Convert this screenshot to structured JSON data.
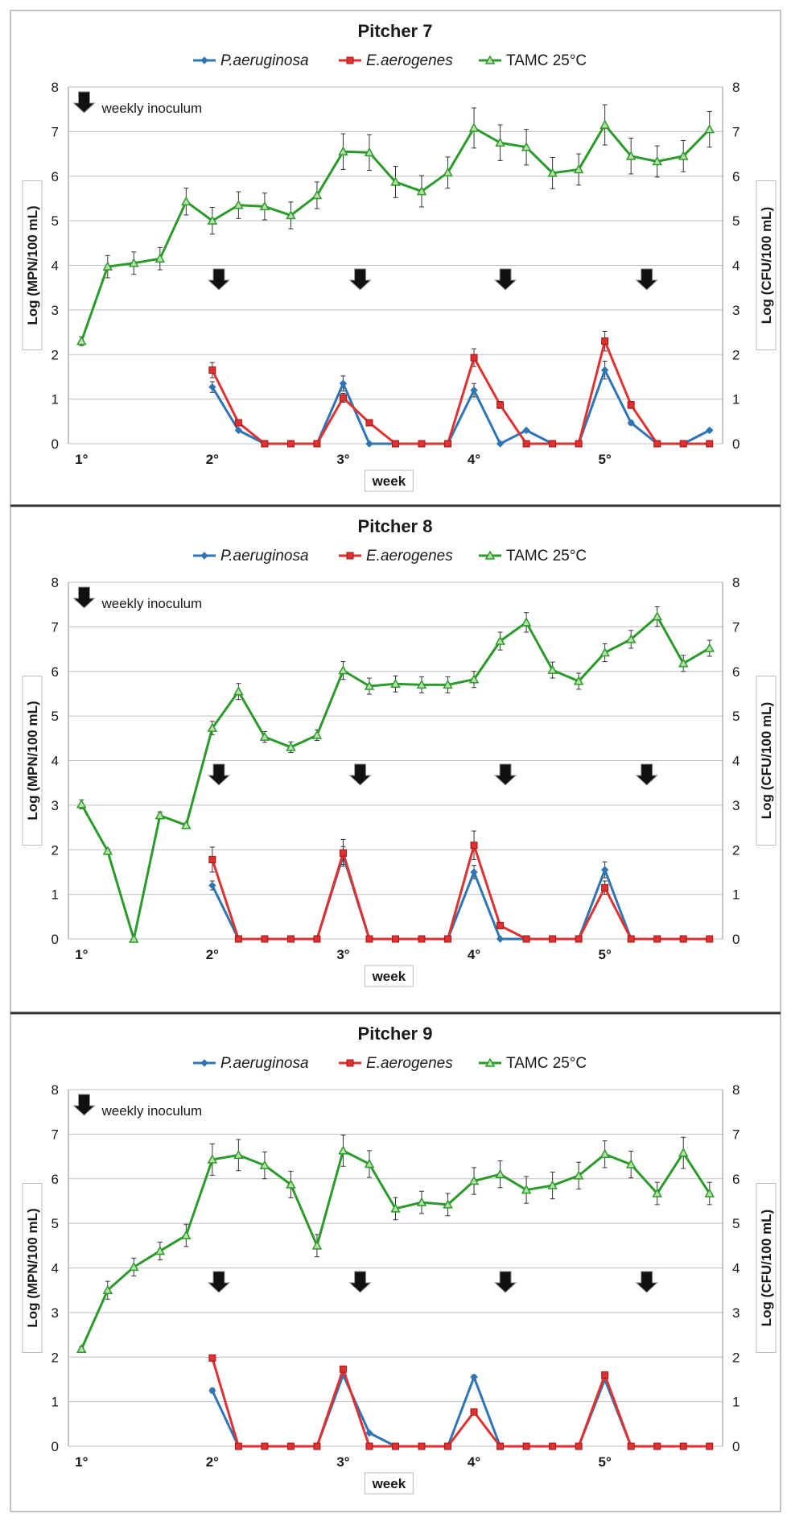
{
  "colors": {
    "pa": "#2e75b6",
    "ea": "#e03030",
    "tamc": "#2b9a2b",
    "grid": "#bfbfbf",
    "divider": "#333333",
    "arrow": "#111111"
  },
  "legend": {
    "pa": "P.aeruginosa",
    "ea": "E.aerogenes",
    "tamc": "TAMC 25°C"
  },
  "annotation": "weekly inoculum",
  "chart_data": [
    {
      "type": "line",
      "title": "Pitcher 7",
      "xlabel": "week",
      "ylabel_left": "Log (MPN/100 mL)",
      "ylabel_right": "Log (CFU/100 mL)",
      "ylim": [
        0,
        8
      ],
      "yticks": [
        "0",
        "1",
        "2",
        "3",
        "4",
        "5",
        "6",
        "7",
        "8"
      ],
      "xticks": [
        "1°",
        "2°",
        "3°",
        "4°",
        "5°"
      ],
      "x_tick_values": [
        1,
        2,
        3,
        4,
        5
      ],
      "inoculum_weeks": [
        2.05,
        3.13,
        4.24,
        5.32
      ],
      "series": [
        {
          "name": "TAMC 25°C",
          "key": "tamc",
          "x": [
            1,
            1.2,
            1.4,
            1.6,
            1.8,
            2,
            2.2,
            2.4,
            2.6,
            2.8,
            3,
            3.2,
            3.4,
            3.6,
            3.8,
            4,
            4.2,
            4.4,
            4.6,
            4.8,
            5,
            5.2,
            5.4,
            5.6,
            5.8
          ],
          "values": [
            2.3,
            3.97,
            4.05,
            4.15,
            5.43,
            5.0,
            5.35,
            5.32,
            5.12,
            5.57,
            6.55,
            6.53,
            5.87,
            5.66,
            6.08,
            7.08,
            6.75,
            6.65,
            6.07,
            6.15,
            7.15,
            6.45,
            6.33,
            6.45,
            7.05
          ],
          "errors": [
            0.1,
            0.25,
            0.25,
            0.25,
            0.3,
            0.3,
            0.3,
            0.3,
            0.3,
            0.3,
            0.4,
            0.4,
            0.35,
            0.35,
            0.35,
            0.45,
            0.4,
            0.4,
            0.35,
            0.35,
            0.45,
            0.4,
            0.35,
            0.35,
            0.4
          ]
        },
        {
          "name": "P.aeruginosa",
          "key": "pa",
          "x": [
            2,
            2.2,
            2.4,
            2.6,
            2.8,
            3,
            3.2,
            3.4,
            3.6,
            3.8,
            4,
            4.2,
            4.4,
            4.6,
            4.8,
            5,
            5.2,
            5.4,
            5.6,
            5.8
          ],
          "values": [
            1.27,
            0.3,
            0,
            0,
            0,
            1.35,
            0,
            0,
            0,
            0,
            1.2,
            0,
            0.3,
            0,
            0,
            1.65,
            0.47,
            0,
            0,
            0.3
          ],
          "errors": [
            0.12,
            0.03,
            0,
            0,
            0,
            0.17,
            0,
            0,
            0,
            0,
            0.15,
            0,
            0.03,
            0,
            0,
            0.2,
            0.05,
            0,
            0,
            0.03
          ]
        },
        {
          "name": "E.aerogenes",
          "key": "ea",
          "x": [
            2,
            2.2,
            2.4,
            2.6,
            2.8,
            3,
            3.2,
            3.4,
            3.6,
            3.8,
            4,
            4.2,
            4.4,
            4.6,
            4.8,
            5,
            5.2,
            5.4,
            5.6,
            5.8
          ],
          "values": [
            1.65,
            0.47,
            0,
            0,
            0,
            1.03,
            0.47,
            0,
            0,
            0,
            1.93,
            0.87,
            0,
            0,
            0,
            2.3,
            0.87,
            0,
            0,
            0
          ],
          "errors": [
            0.17,
            0.05,
            0,
            0,
            0,
            0.1,
            0.05,
            0,
            0,
            0,
            0.2,
            0.08,
            0,
            0,
            0,
            0.22,
            0.08,
            0,
            0,
            0
          ]
        }
      ]
    },
    {
      "type": "line",
      "title": "Pitcher 8",
      "xlabel": "week",
      "ylabel_left": "Log (MPN/100 mL)",
      "ylabel_right": "Log (CFU/100 mL)",
      "ylim": [
        0,
        8
      ],
      "yticks": [
        "0",
        "1",
        "2",
        "3",
        "4",
        "5",
        "6",
        "7",
        "8"
      ],
      "xticks": [
        "1°",
        "2°",
        "3°",
        "4°",
        "5°"
      ],
      "x_tick_values": [
        1,
        2,
        3,
        4,
        5
      ],
      "inoculum_weeks": [
        2.05,
        3.13,
        4.24,
        5.32
      ],
      "series": [
        {
          "name": "TAMC 25°C",
          "key": "tamc",
          "x": [
            1,
            1.2,
            1.4,
            1.6,
            1.8,
            2,
            2.2,
            2.4,
            2.6,
            2.8,
            3,
            3.2,
            3.4,
            3.6,
            3.8,
            4,
            4.2,
            4.4,
            4.6,
            4.8,
            5,
            5.2,
            5.4,
            5.6,
            5.8
          ],
          "values": [
            3.02,
            1.97,
            0,
            2.77,
            2.55,
            4.73,
            5.55,
            4.53,
            4.3,
            4.57,
            6.02,
            5.67,
            5.72,
            5.7,
            5.7,
            5.82,
            6.68,
            7.1,
            6.03,
            5.78,
            6.42,
            6.72,
            7.23,
            6.18,
            6.52
          ],
          "errors": [
            0.1,
            0.05,
            0,
            0.08,
            0.05,
            0.15,
            0.18,
            0.12,
            0.12,
            0.12,
            0.2,
            0.18,
            0.18,
            0.18,
            0.18,
            0.18,
            0.2,
            0.22,
            0.18,
            0.18,
            0.2,
            0.2,
            0.22,
            0.18,
            0.18
          ]
        },
        {
          "name": "P.aeruginosa",
          "key": "pa",
          "x": [
            2,
            2.2,
            2.4,
            2.6,
            2.8,
            3,
            3.2,
            3.4,
            3.6,
            3.8,
            4,
            4.2,
            4.4,
            4.6,
            4.8,
            5,
            5.2,
            5.4,
            5.6,
            5.8
          ],
          "values": [
            1.2,
            0,
            0,
            0,
            0,
            1.87,
            0,
            0,
            0,
            0,
            1.5,
            0,
            0,
            0,
            0,
            1.55,
            0,
            0,
            0,
            0
          ],
          "errors": [
            0.1,
            0,
            0,
            0,
            0,
            0.2,
            0,
            0,
            0,
            0,
            0.15,
            0,
            0,
            0,
            0,
            0.18,
            0,
            0,
            0,
            0
          ]
        },
        {
          "name": "E.aerogenes",
          "key": "ea",
          "x": [
            2,
            2.2,
            2.4,
            2.6,
            2.8,
            3,
            3.2,
            3.4,
            3.6,
            3.8,
            4,
            4.2,
            4.4,
            4.6,
            4.8,
            5,
            5.2,
            5.4,
            5.6,
            5.8
          ],
          "values": [
            1.78,
            0,
            0,
            0,
            0,
            1.93,
            0,
            0,
            0,
            0,
            2.1,
            0.3,
            0,
            0,
            0,
            1.15,
            0,
            0,
            0,
            0
          ],
          "errors": [
            0.28,
            0,
            0,
            0,
            0,
            0.3,
            0,
            0,
            0,
            0,
            0.32,
            0.03,
            0,
            0,
            0,
            0.15,
            0,
            0,
            0,
            0
          ]
        }
      ]
    },
    {
      "type": "line",
      "title": "Pitcher 9",
      "xlabel": "week",
      "ylabel_left": "Log (MPN/100 mL)",
      "ylabel_right": "Log (CFU/100 mL)",
      "ylim": [
        0,
        8
      ],
      "yticks": [
        "0",
        "1",
        "2",
        "3",
        "4",
        "5",
        "6",
        "7",
        "8"
      ],
      "xticks": [
        "1°",
        "2°",
        "3°",
        "4°",
        "5°"
      ],
      "x_tick_values": [
        1,
        2,
        3,
        4,
        5
      ],
      "inoculum_weeks": [
        2.05,
        3.13,
        4.24,
        5.32
      ],
      "series": [
        {
          "name": "TAMC 25°C",
          "key": "tamc",
          "x": [
            1,
            1.2,
            1.4,
            1.6,
            1.8,
            2,
            2.2,
            2.4,
            2.6,
            2.8,
            3,
            3.2,
            3.4,
            3.6,
            3.8,
            4,
            4.2,
            4.4,
            4.6,
            4.8,
            5,
            5.2,
            5.4,
            5.6,
            5.8
          ],
          "values": [
            2.18,
            3.5,
            4.02,
            4.38,
            4.73,
            6.43,
            6.53,
            6.3,
            5.87,
            4.5,
            6.63,
            6.33,
            5.33,
            5.47,
            5.42,
            5.95,
            6.1,
            5.75,
            5.85,
            6.07,
            6.55,
            6.32,
            5.67,
            6.58,
            5.67
          ],
          "errors": [
            0.05,
            0.2,
            0.2,
            0.2,
            0.25,
            0.35,
            0.35,
            0.3,
            0.3,
            0.25,
            0.35,
            0.3,
            0.25,
            0.25,
            0.25,
            0.3,
            0.3,
            0.3,
            0.3,
            0.3,
            0.3,
            0.3,
            0.25,
            0.35,
            0.25
          ]
        },
        {
          "name": "P.aeruginosa",
          "key": "pa",
          "x": [
            2,
            2.2,
            2.4,
            2.6,
            2.8,
            3,
            3.2,
            3.4,
            3.6,
            3.8,
            4,
            4.2,
            4.4,
            4.6,
            4.8,
            5,
            5.2,
            5.4,
            5.6,
            5.8
          ],
          "values": [
            1.25,
            0,
            0,
            0,
            0,
            1.6,
            0.3,
            0,
            0,
            0,
            1.55,
            0,
            0,
            0,
            0,
            1.5,
            0,
            0,
            0,
            0
          ],
          "errors": [
            0.05,
            0,
            0,
            0,
            0,
            0.06,
            0.02,
            0,
            0,
            0,
            0.05,
            0,
            0,
            0,
            0,
            0.05,
            0,
            0,
            0,
            0
          ]
        },
        {
          "name": "E.aerogenes",
          "key": "ea",
          "x": [
            2,
            2.2,
            2.4,
            2.6,
            2.8,
            3,
            3.2,
            3.4,
            3.6,
            3.8,
            4,
            4.2,
            4.4,
            4.6,
            4.8,
            5,
            5.2,
            5.4,
            5.6,
            5.8
          ],
          "values": [
            1.98,
            0,
            0,
            0,
            0,
            1.73,
            0,
            0,
            0,
            0,
            0.77,
            0,
            0,
            0,
            0,
            1.6,
            0,
            0,
            0,
            0
          ],
          "errors": [
            0.06,
            0,
            0,
            0,
            0,
            0.05,
            0,
            0,
            0,
            0,
            0.05,
            0,
            0,
            0,
            0,
            0.05,
            0,
            0,
            0,
            0
          ]
        }
      ]
    }
  ]
}
